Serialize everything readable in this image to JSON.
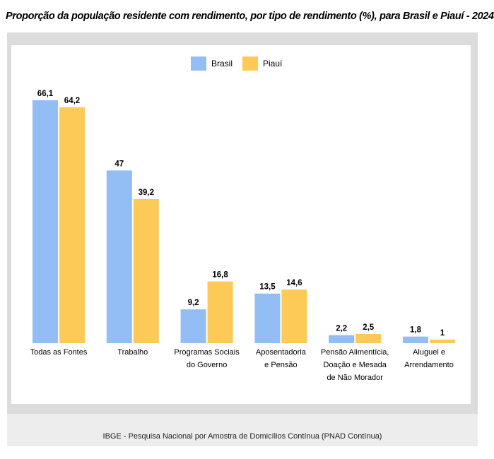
{
  "title": "Proporção da população residente com rendimento, por tipo de rendimento (%), para Brasil e Piauí - 2024",
  "source": "IBGE - Pesquisa Nacional por Amostra de Domicílios Contínua (PNAD Contínua)",
  "colors": {
    "brasil": "#92bdf5",
    "piaui": "#fdca58",
    "frame": "#dcdcdc"
  },
  "chart_data": {
    "type": "bar",
    "title": "Proporção da população residente com rendimento, por tipo de rendimento (%), para Brasil e Piauí - 2024",
    "xlabel": "",
    "ylabel": "",
    "ylim": [
      0,
      70
    ],
    "grid": false,
    "legend_position": "top-center",
    "categories": [
      [
        "Todas as Fontes"
      ],
      [
        "Trabalho"
      ],
      [
        "Programas Sociais",
        "do Governo"
      ],
      [
        "Aposentadoria",
        "e Pensão"
      ],
      [
        "Pensão Alimentícia,",
        "Doação e Mesada",
        "de Não Morador"
      ],
      [
        "Aluguel e",
        "Arrendamento"
      ]
    ],
    "series": [
      {
        "name": "Brasil",
        "values": [
          66.1,
          47,
          9.2,
          13.5,
          2.2,
          1.8
        ],
        "labels": [
          "66,1",
          "47",
          "9,2",
          "13,5",
          "2,2",
          "1,8"
        ]
      },
      {
        "name": "Piauí",
        "values": [
          64.2,
          39.2,
          16.8,
          14.6,
          2.5,
          1
        ],
        "labels": [
          "64,2",
          "39,2",
          "16,8",
          "14,6",
          "2,5",
          "1"
        ]
      }
    ]
  }
}
